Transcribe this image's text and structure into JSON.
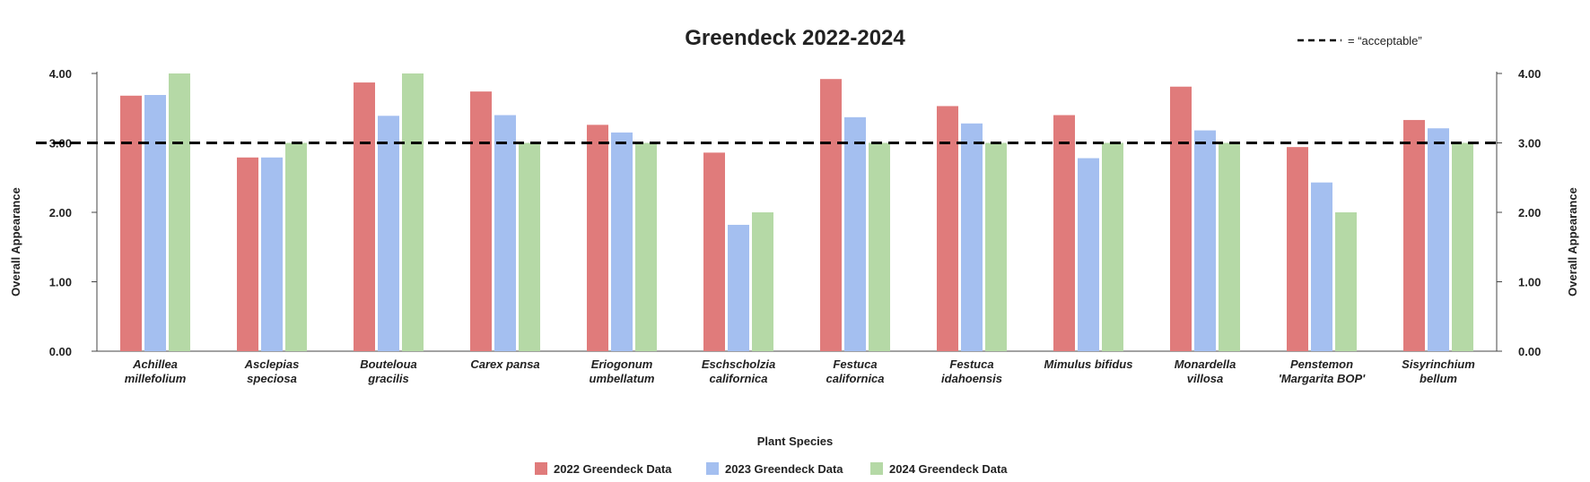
{
  "chart_data": {
    "type": "bar",
    "title": "Greendeck 2022-2024",
    "xlabel": "Plant Species",
    "ylabel": "Overall Appearance",
    "ylabel_right": "Overall Appearance",
    "ylim": [
      0,
      4
    ],
    "yticks": [
      "0.00",
      "1.00",
      "2.00",
      "3.00",
      "4.00"
    ],
    "grid": false,
    "legend_position": "bottom",
    "categories": [
      [
        "Achillea",
        "millefolium"
      ],
      [
        "Asclepias",
        "speciosa"
      ],
      [
        "Bouteloua",
        "gracilis"
      ],
      [
        "Carex pansa"
      ],
      [
        "Eriogonum",
        "umbellatum"
      ],
      [
        "Eschscholzia",
        "californica"
      ],
      [
        "Festuca",
        "californica"
      ],
      [
        "Festuca",
        "idahoensis"
      ],
      [
        "Mimulus bifidus"
      ],
      [
        "Monardella",
        "villosa"
      ],
      [
        "Penstemon",
        "'Margarita BOP'"
      ],
      [
        "Sisyrinchium",
        "bellum"
      ]
    ],
    "series": [
      {
        "name": "2022 Greendeck Data",
        "color": "#e07b7b",
        "values": [
          3.68,
          2.79,
          3.87,
          3.74,
          3.26,
          2.86,
          3.92,
          3.53,
          3.4,
          3.81,
          2.94,
          3.33
        ]
      },
      {
        "name": "2023 Greendeck Data",
        "color": "#a4bff0",
        "values": [
          3.69,
          2.79,
          3.39,
          3.4,
          3.15,
          1.82,
          3.37,
          3.28,
          2.78,
          3.18,
          2.43,
          3.21
        ]
      },
      {
        "name": "2024 Greendeck Data",
        "color": "#b5d9a6",
        "values": [
          4.0,
          3.0,
          4.0,
          3.0,
          3.0,
          2.0,
          3.0,
          3.0,
          3.0,
          3.0,
          2.0,
          3.0
        ]
      }
    ],
    "reference_line": {
      "value": 3.0,
      "style": "dashed",
      "legend_label": "= “acceptable”"
    }
  }
}
